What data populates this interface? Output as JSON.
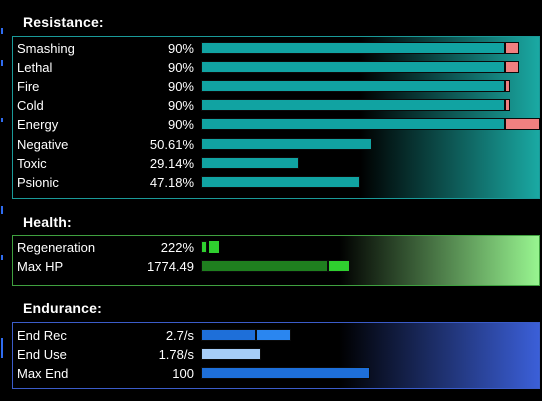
{
  "sections": {
    "resistance": {
      "title": "Resistance:",
      "rows": [
        {
          "label": "Smashing",
          "value": "90%",
          "fraction": 0.9
        },
        {
          "label": "Lethal",
          "value": "90%",
          "fraction": 0.9
        },
        {
          "label": "Fire",
          "value": "90%",
          "fraction": 0.9
        },
        {
          "label": "Cold",
          "value": "90%",
          "fraction": 0.9
        },
        {
          "label": "Energy",
          "value": "90%",
          "fraction": 0.9
        },
        {
          "label": "Negative",
          "value": "50.61%",
          "fraction": 0.5061
        },
        {
          "label": "Toxic",
          "value": "29.14%",
          "fraction": 0.2914
        },
        {
          "label": "Psionic",
          "value": "47.18%",
          "fraction": 0.4718
        }
      ]
    },
    "health": {
      "title": "Health:",
      "rows": [
        {
          "label": "Regeneration",
          "value": "222%"
        },
        {
          "label": "Max HP",
          "value": "1774.49"
        }
      ]
    },
    "endurance": {
      "title": "Endurance:",
      "rows": [
        {
          "label": "End Rec",
          "value": "2.7/s"
        },
        {
          "label": "End Use",
          "value": "1.78/s"
        },
        {
          "label": "Max End",
          "value": "100"
        }
      ]
    }
  },
  "colors": {
    "resistance_bar": "#11a3a2",
    "resistance_overcap": "#f08080",
    "resistance_panel_border": "#1a9a99",
    "resistance_gradient": "#1aa9a3",
    "health_bar_dark": "#1f7f1f",
    "health_bar_light": "#2fd02f",
    "health_panel_border": "#3fa03f",
    "health_gradient": "#98f590",
    "endurance_bar": "#1e6fd9",
    "endurance_bar_light": "#a6cdf7",
    "endurance_panel_border": "#3b5cc9",
    "endurance_gradient": "#3b5fd8"
  }
}
